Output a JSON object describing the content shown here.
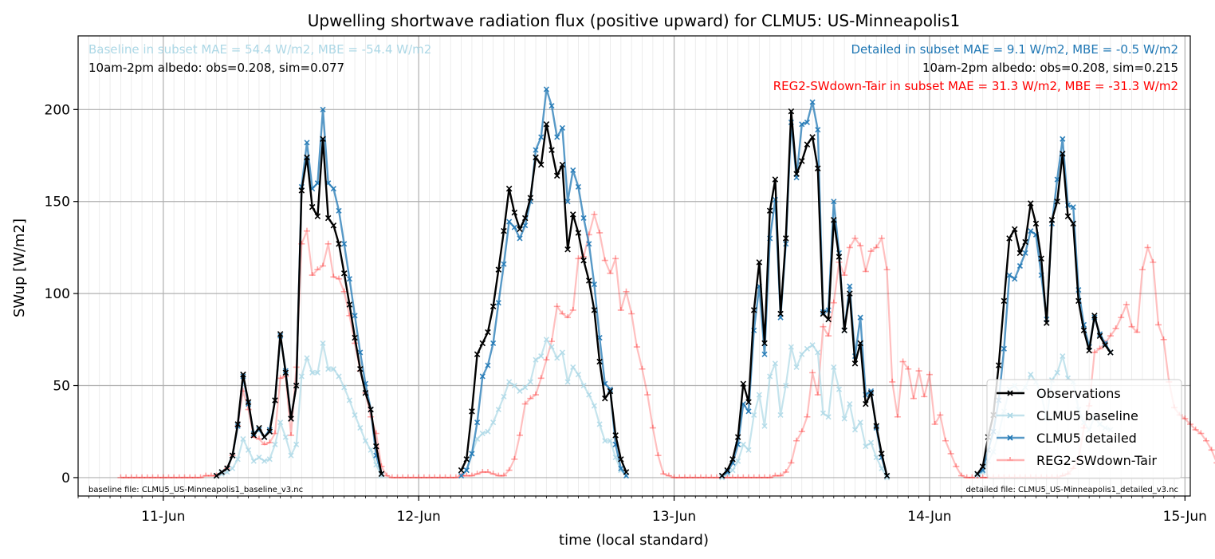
{
  "chart_data": {
    "type": "line",
    "title": "Upwelling shortwave radiation flux (positive upward) for CLMU5: US-Minneapolis1",
    "xlabel": "time (local standard)",
    "ylabel": "SWup [W/m2]",
    "xlim": [
      "2017-06-10 16:00",
      "2017-06-15 00:30"
    ],
    "ylim": [
      -10,
      240
    ],
    "yticks": [
      0,
      50,
      100,
      150,
      200
    ],
    "xticks": [
      {
        "value": "2017-06-11 00:00",
        "label": "11-Jun"
      },
      {
        "value": "2017-06-12 00:00",
        "label": "12-Jun"
      },
      {
        "value": "2017-06-13 00:00",
        "label": "13-Jun"
      },
      {
        "value": "2017-06-14 00:00",
        "label": "14-Jun"
      },
      {
        "value": "2017-06-15 00:00",
        "label": "15-Jun"
      }
    ],
    "time_step": "30min",
    "grid": true,
    "legend_position": "bottom-right",
    "annotations": {
      "baseline_stats": "Baseline in subset MAE = 54.4 W/m2, MBE = -54.4 W/m2",
      "baseline_albedo": "10am-2pm albedo: obs=0.208, sim=0.077",
      "detailed_stats": "Detailed in subset MAE = 9.1 W/m2, MBE = -0.5 W/m2",
      "detailed_albedo": "10am-2pm albedo: obs=0.208, sim=0.215",
      "reg2_stats": "REG2-SWdown-Tair in subset MAE = 31.3 W/m2, MBE = -31.3 W/m2",
      "baseline_file": "baseline file: CLMU5_US-Minneapolis1_baseline_v3.nc",
      "detailed_file": "detailed file: CLMU5_US-Minneapolis1_detailed_v3.nc"
    },
    "colors": {
      "observations": "#000000",
      "baseline": "#add8e6",
      "detailed": "#1f77b4",
      "reg2": "#ff0000"
    },
    "series": [
      {
        "name": "Observations",
        "segments": [
          {
            "start": "2017-06-11 05:00",
            "values": [
              1,
              3,
              5,
              12,
              29,
              56,
              41,
              23,
              27,
              22,
              25,
              42,
              78,
              57,
              32,
              50,
              156,
              174,
              147,
              142,
              184,
              141,
              137,
              127,
              111,
              94,
              76,
              59,
              46,
              37,
              17,
              2
            ]
          },
          {
            "start": "2017-06-12 04:00",
            "values": [
              4,
              10,
              36,
              67,
              73,
              79,
              93,
              113,
              134,
              157,
              144,
              135,
              141,
              152,
              174,
              170,
              192,
              178,
              164,
              170,
              124,
              143,
              133,
              118,
              107,
              91,
              63,
              43,
              47,
              23,
              10,
              3
            ]
          },
          {
            "start": "2017-06-13 04:30",
            "values": [
              1,
              4,
              10,
              22,
              51,
              41,
              91,
              117,
              73,
              145,
              162,
              89,
              130,
              199,
              165,
              172,
              181,
              185,
              168,
              89,
              86,
              140,
              120,
              80,
              100,
              62,
              73,
              40,
              46,
              28,
              13,
              1
            ]
          },
          {
            "start": "2017-06-14 04:30",
            "values": [
              2,
              6,
              22,
              34,
              61,
              96,
              130,
              135,
              122,
              128,
              149,
              138,
              119,
              84,
              140,
              150,
              176,
              142,
              138,
              96,
              80,
              69,
              88,
              77,
              72,
              68
            ]
          }
        ]
      },
      {
        "name": "CLMU5 baseline",
        "segments": [
          {
            "start": "2017-06-11 05:00",
            "values": [
              1,
              2,
              3,
              5,
              10,
              21,
              15,
              9,
              11,
              9,
              10,
              18,
              30,
              22,
              12,
              18,
              55,
              65,
              57,
              57,
              73,
              59,
              59,
              55,
              49,
              42,
              34,
              27,
              20,
              15,
              7,
              1
            ]
          },
          {
            "start": "2017-06-12 04:00",
            "values": [
              1,
              4,
              13,
              21,
              24,
              25,
              30,
              37,
              44,
              52,
              50,
              47,
              49,
              52,
              64,
              66,
              75,
              71,
              65,
              68,
              52,
              60,
              56,
              50,
              45,
              39,
              29,
              20,
              20,
              11,
              4,
              1
            ]
          },
          {
            "start": "2017-06-13 04:30",
            "values": [
              0,
              2,
              4,
              9,
              18,
              15,
              34,
              45,
              28,
              55,
              62,
              34,
              50,
              71,
              60,
              67,
              70,
              72,
              68,
              35,
              33,
              60,
              48,
              32,
              40,
              26,
              30,
              17,
              19,
              11,
              5,
              0
            ]
          },
          {
            "start": "2017-06-14 04:30",
            "values": [
              1,
              3,
              9,
              14,
              24,
              36,
              48,
              50,
              46,
              49,
              56,
              52,
              45,
              32,
              53,
              57,
              66,
              54,
              52,
              37,
              30,
              26,
              33,
              29,
              27,
              26
            ]
          }
        ]
      },
      {
        "name": "CLMU5 detailed",
        "segments": [
          {
            "start": "2017-06-11 05:00",
            "values": [
              1,
              3,
              5,
              12,
              28,
              55,
              40,
              24,
              26,
              22,
              26,
              42,
              77,
              58,
              32,
              50,
              158,
              182,
              157,
              160,
              200,
              160,
              157,
              145,
              127,
              108,
              88,
              68,
              51,
              37,
              12,
              2
            ]
          },
          {
            "start": "2017-06-12 04:00",
            "values": [
              1,
              4,
              13,
              30,
              55,
              61,
              73,
              95,
              116,
              139,
              136,
              130,
              137,
              150,
              178,
              185,
              211,
              202,
              185,
              190,
              150,
              167,
              158,
              141,
              127,
              105,
              76,
              51,
              48,
              18,
              5,
              1
            ]
          },
          {
            "start": "2017-06-13 04:30",
            "values": [
              1,
              3,
              8,
              18,
              40,
              36,
              80,
              104,
              67,
              130,
              151,
              87,
              127,
              193,
              163,
              192,
              193,
              204,
              189,
              90,
              91,
              150,
              122,
              80,
              104,
              66,
              87,
              45,
              47,
              27,
              11,
              1
            ]
          },
          {
            "start": "2017-06-14 04:30",
            "values": [
              2,
              4,
              15,
              25,
              42,
              70,
              110,
              108,
              115,
              122,
              134,
              132,
              110,
              86,
              138,
              162,
              184,
              148,
              147,
              102,
              83,
              71,
              87,
              78,
              73,
              68
            ]
          }
        ]
      },
      {
        "name": "REG2-SWdown-Tair",
        "segments": [
          {
            "start": "2017-06-10 20:00",
            "values": [
              0,
              0,
              0,
              0,
              0,
              0,
              0,
              0,
              0,
              0,
              0,
              0,
              0,
              0,
              0,
              0,
              1,
              1,
              1,
              2,
              5,
              12,
              28,
              47,
              37,
              22,
              21,
              18,
              19,
              24,
              54,
              55,
              23,
              60,
              127,
              134,
              110,
              113,
              115,
              127,
              109,
              108,
              101,
              88,
              73,
              58,
              46,
              33,
              24,
              6,
              1,
              0,
              0,
              0,
              0,
              0,
              0,
              0,
              0,
              0,
              0,
              0,
              0,
              0,
              1,
              1,
              1,
              2,
              3,
              3,
              2,
              1,
              1,
              4,
              10,
              23,
              40,
              43,
              45,
              54,
              64,
              74,
              93,
              89,
              87,
              91,
              119,
              120,
              132,
              143,
              133,
              118,
              111,
              119,
              91,
              101,
              89,
              71,
              59,
              45,
              27,
              12,
              2,
              1,
              0,
              0,
              0,
              0,
              0,
              0,
              0,
              0,
              0,
              0,
              0,
              0,
              0,
              0,
              0,
              0,
              0,
              0,
              0,
              1,
              1,
              3,
              8,
              20,
              25,
              33,
              57,
              45,
              82,
              77,
              95,
              117,
              110,
              125,
              130,
              126,
              112,
              123,
              125,
              130,
              113,
              52,
              33,
              63,
              59,
              43,
              58,
              44,
              56,
              29,
              34,
              20,
              13,
              6,
              1,
              0,
              0,
              0,
              0,
              0,
              0,
              0,
              0,
              0,
              0,
              0,
              0,
              0,
              0,
              0,
              0,
              0,
              0,
              1,
              2,
              5,
              10,
              27,
              39,
              68,
              70,
              73,
              77,
              81,
              87,
              94,
              82,
              79,
              113,
              125,
              117,
              83,
              75,
              52,
              38,
              34,
              32,
              29,
              26,
              24,
              20,
              15,
              8,
              2
            ]
          }
        ]
      }
    ]
  }
}
